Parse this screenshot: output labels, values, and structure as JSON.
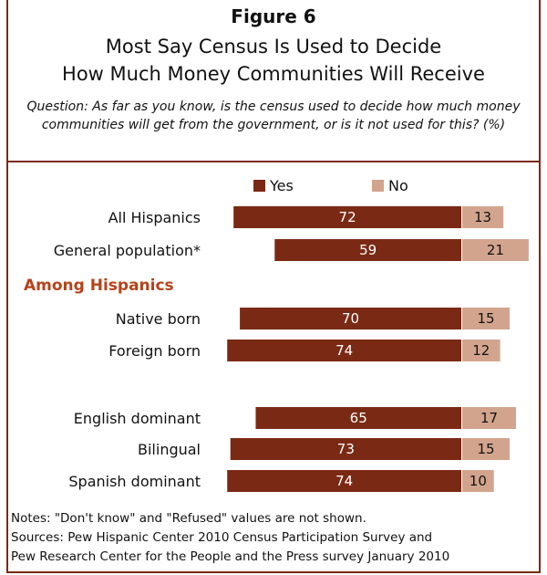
{
  "header": {
    "figure_label": "Figure 6",
    "title_line1": "Most Say Census Is Used to Decide",
    "title_line2": "How Much Money Communities Will Receive",
    "question": "Question: As far as you know, is the census used to decide how much money communities will get from the government, or is it not used for this? (%)"
  },
  "notes": {
    "line1": "Notes: \"Don't know\" and \"Refused\" values are not shown.",
    "line2": "Sources: Pew Hispanic Center 2010 Census Participation  Survey and",
    "line3": "Pew Research Center for the People and the Press survey January 2010"
  },
  "colors": {
    "yes": "#7a2a14",
    "no": "#d3a48d",
    "accent": "#b5431a"
  },
  "chart_data": {
    "type": "bar",
    "orientation": "horizontal-diverging",
    "legend": [
      "Yes",
      "No"
    ],
    "legend_placement": "top",
    "section_heading": "Among Hispanics",
    "categories": [
      "All Hispanics",
      "General population*",
      "Native born",
      "Foreign born",
      "English dominant",
      "Bilingual",
      "Spanish dominant"
    ],
    "series": [
      {
        "name": "Yes",
        "values": [
          72,
          59,
          70,
          74,
          65,
          73,
          74
        ]
      },
      {
        "name": "No",
        "values": [
          13,
          21,
          15,
          12,
          17,
          15,
          10
        ]
      }
    ]
  }
}
